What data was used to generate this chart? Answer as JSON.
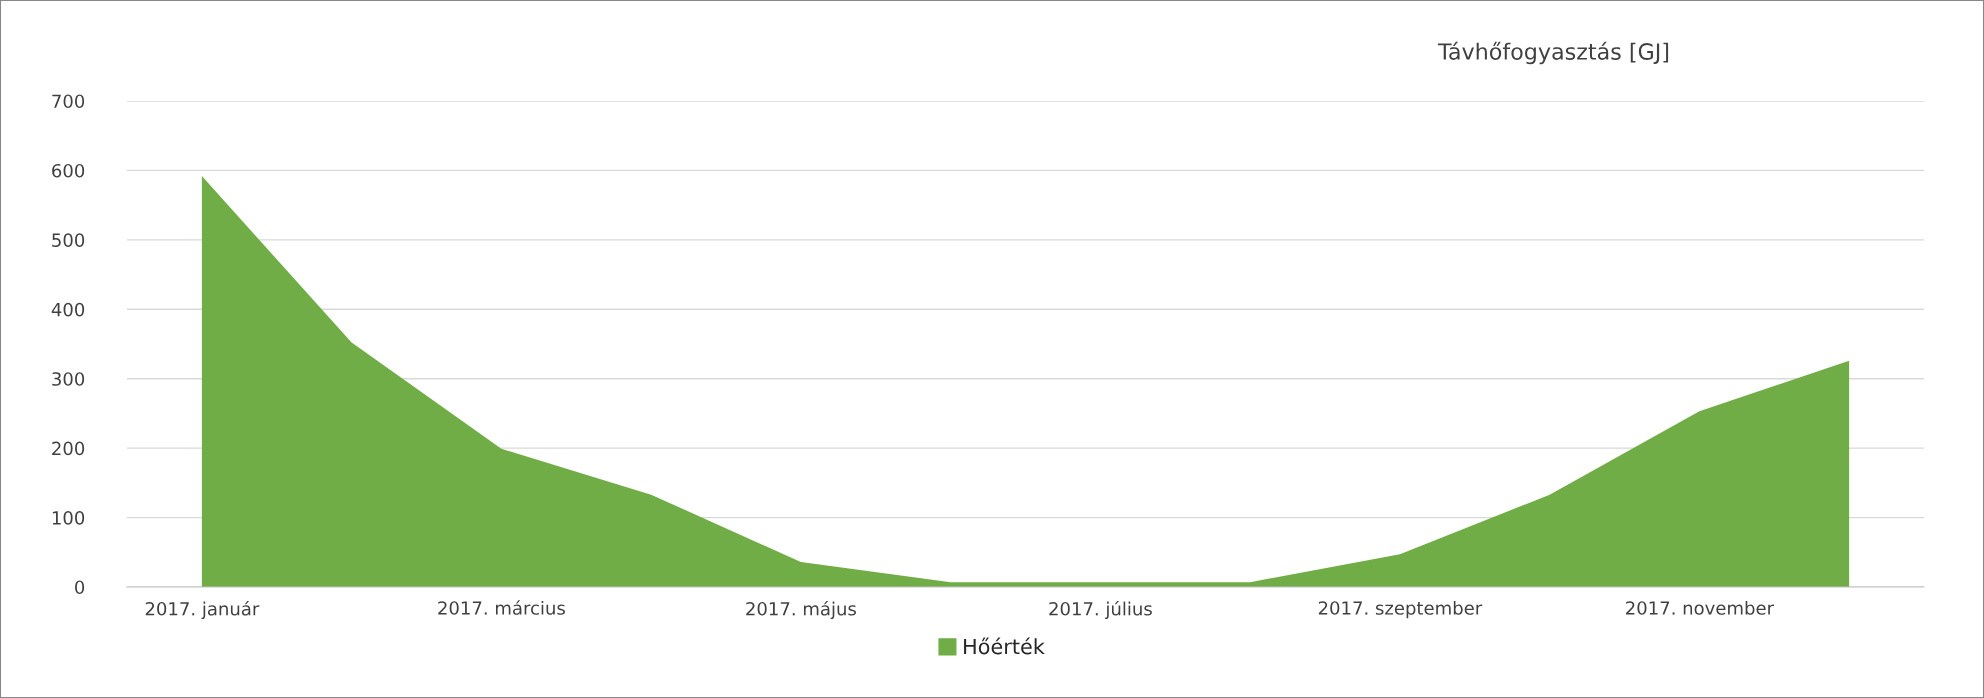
{
  "chart_data": {
    "type": "area",
    "title": "Távhőfogyasztás [GJ]",
    "categories": [
      "2017. január",
      null,
      "2017. március",
      null,
      "2017. május",
      null,
      "2017. július",
      null,
      "2017. szeptember",
      null,
      "2017. november",
      null
    ],
    "series": [
      {
        "name": "Hőérték",
        "color": "#70ad47",
        "values": [
          592,
          352,
          199,
          133,
          36,
          7,
          7,
          7,
          47,
          133,
          253,
          326
        ]
      }
    ],
    "ylim": [
      0,
      700
    ],
    "yticks": [
      0,
      100,
      200,
      300,
      400,
      500,
      600,
      700
    ],
    "grid": "y",
    "legend": "bottom"
  }
}
